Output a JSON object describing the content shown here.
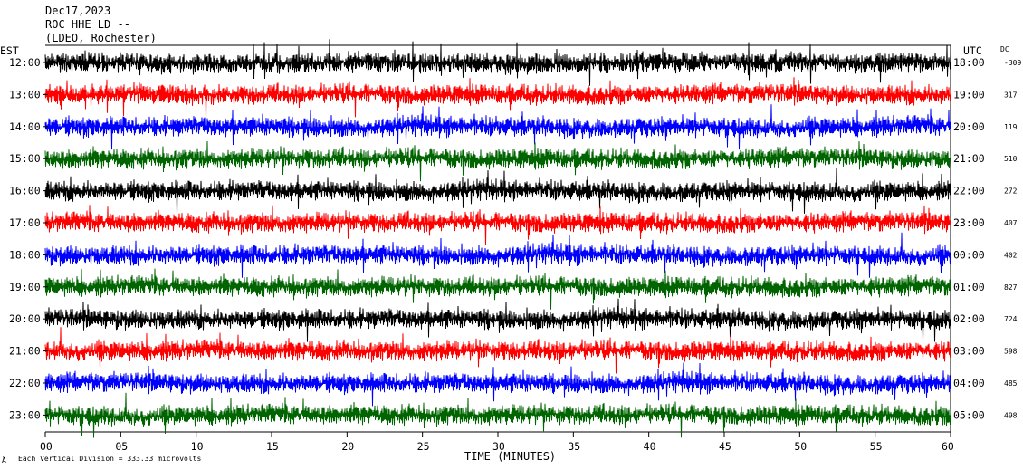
{
  "header": {
    "date": "Dec17,2023",
    "station": "ROC HHE LD --",
    "network": "(LDEO, Rochester)"
  },
  "left_axis_title": "EST",
  "right_axis_title": "UTC",
  "dc_title": "DC",
  "footer": {
    "note": "Each Vertical Division = 333.33 microvolts",
    "mark": "Å"
  },
  "chart_data": {
    "type": "line",
    "title": "ROC HHE LD --",
    "xlabel": "TIME (MINUTES)",
    "xlim": [
      0,
      60
    ],
    "x_ticks": [
      "00",
      "05",
      "10",
      "15",
      "20",
      "25",
      "30",
      "35",
      "40",
      "45",
      "50",
      "55",
      "60"
    ],
    "colors": [
      "#000000",
      "#ff0000",
      "#0000ff",
      "#006400"
    ],
    "series": [
      {
        "est": "12:00",
        "utc": "18:00",
        "dc": "-309",
        "color": "#000000"
      },
      {
        "est": "13:00",
        "utc": "19:00",
        "dc": "317",
        "color": "#ff0000"
      },
      {
        "est": "14:00",
        "utc": "20:00",
        "dc": "119",
        "color": "#0000ff"
      },
      {
        "est": "15:00",
        "utc": "21:00",
        "dc": "510",
        "color": "#006400"
      },
      {
        "est": "16:00",
        "utc": "22:00",
        "dc": "272",
        "color": "#000000"
      },
      {
        "est": "17:00",
        "utc": "23:00",
        "dc": "407",
        "color": "#ff0000"
      },
      {
        "est": "18:00",
        "utc": "00:00",
        "dc": "402",
        "color": "#0000ff"
      },
      {
        "est": "19:00",
        "utc": "01:00",
        "dc": "827",
        "color": "#006400"
      },
      {
        "est": "20:00",
        "utc": "02:00",
        "dc": "724",
        "color": "#000000"
      },
      {
        "est": "21:00",
        "utc": "03:00",
        "dc": "598",
        "color": "#ff0000"
      },
      {
        "est": "22:00",
        "utc": "04:00",
        "dc": "485",
        "color": "#0000ff"
      },
      {
        "est": "23:00",
        "utc": "05:00",
        "dc": "498",
        "color": "#006400"
      }
    ]
  }
}
